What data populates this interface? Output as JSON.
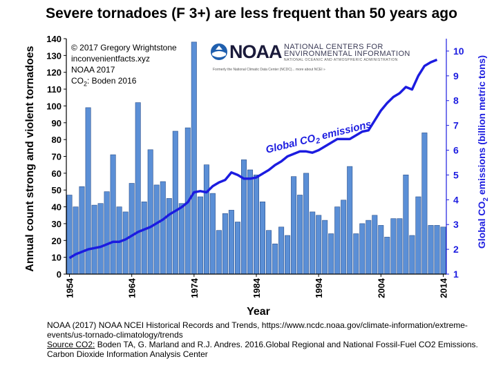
{
  "chart_data": {
    "type": "bar",
    "title": "Severe tornadoes (F 3+) are less frequent than 50 years ago",
    "xlabel": "Year",
    "ylabel": "Annual count strong and violent tornadoes",
    "y2label_prefix": "Global CO",
    "y2label_sub": "2",
    "y2label_suffix": " emissions  (billion metric tons)",
    "ylim": [
      0,
      140
    ],
    "y2lim": [
      1,
      10.5
    ],
    "yticks": [
      0,
      10,
      20,
      30,
      40,
      50,
      60,
      70,
      80,
      90,
      100,
      110,
      120,
      130,
      140
    ],
    "y2ticks": [
      1,
      2,
      3,
      4,
      5,
      6,
      7,
      8,
      9,
      10
    ],
    "xticks": [
      1954,
      1964,
      1974,
      1984,
      1994,
      2004,
      2014
    ],
    "years": [
      1954,
      1955,
      1956,
      1957,
      1958,
      1959,
      1960,
      1961,
      1962,
      1963,
      1964,
      1965,
      1966,
      1967,
      1968,
      1969,
      1970,
      1971,
      1972,
      1973,
      1974,
      1975,
      1976,
      1977,
      1978,
      1979,
      1980,
      1981,
      1982,
      1983,
      1984,
      1985,
      1986,
      1987,
      1988,
      1989,
      1990,
      1991,
      1992,
      1993,
      1994,
      1995,
      1996,
      1997,
      1998,
      1999,
      2000,
      2001,
      2002,
      2003,
      2004,
      2005,
      2006,
      2007,
      2008,
      2009,
      2010,
      2011,
      2012,
      2013,
      2014
    ],
    "bar_series": {
      "name": "Strong and violent tornadoes",
      "values": [
        47,
        40,
        52,
        99,
        41,
        42,
        49,
        71,
        40,
        37,
        54,
        102,
        43,
        74,
        53,
        55,
        45,
        85,
        42,
        87,
        138,
        46,
        65,
        48,
        26,
        36,
        38,
        31,
        68,
        62,
        59,
        43,
        26,
        18,
        28,
        23,
        58,
        47,
        60,
        37,
        35,
        32,
        24,
        40,
        44,
        64,
        24,
        30,
        32,
        35,
        29,
        22,
        33,
        33,
        59,
        23,
        46,
        84,
        29,
        29,
        28
      ]
    },
    "line_series": {
      "name": "Global CO2 emissions",
      "label_prefix": "Global CO",
      "label_sub": "2",
      "label_suffix": " emissions",
      "values": [
        1.65,
        1.8,
        1.9,
        2.0,
        2.05,
        2.1,
        2.2,
        2.3,
        2.3,
        2.4,
        2.55,
        2.7,
        2.8,
        2.9,
        3.05,
        3.2,
        3.4,
        3.55,
        3.7,
        3.9,
        4.3,
        4.35,
        4.3,
        4.55,
        4.7,
        4.8,
        5.1,
        5.0,
        4.85,
        4.85,
        4.9,
        5.05,
        5.2,
        5.4,
        5.55,
        5.75,
        5.85,
        5.95,
        5.95,
        5.9,
        6.0,
        6.15,
        6.3,
        6.45,
        6.45,
        6.45,
        6.6,
        6.75,
        6.8,
        7.2,
        7.6,
        7.9,
        8.15,
        8.3,
        8.55,
        8.45,
        9.0,
        9.4,
        9.55,
        9.65
      ]
    },
    "grid": false,
    "legend": "none"
  },
  "credits": {
    "copyright": "© 2017 Gregory Wrightstone",
    "site": "inconvenientfacts.xyz",
    "noaa": "NOAA 2017",
    "co2_prefix": "CO",
    "co2_sub": "2",
    "co2_suffix": ": Boden 2016"
  },
  "logo": {
    "name": "NOAA",
    "line1": "NATIONAL CENTERS FOR",
    "line2": "ENVIRONMENTAL INFORMATION",
    "line3": "NATIONAL OCEANIC AND ATMOSPHERIC ADMINISTRATION",
    "line4": "Formerly the National Climatic Data Center (NCDC)... more about NCEI »"
  },
  "footer": {
    "line1": "NOAA (2017) NOAA NCEI Historical Records and Trends, https://www.ncdc.noaa.gov/climate-information/extreme-events/us-tornado-climatology/trends",
    "source_label": "Source CO2:",
    "source_text": " Boden TA, G. Marland and R.J. Andres. 2016.Global Regional and National Fossil-Fuel CO2 Emissions. Carbon Dioxide Information Analysis Center"
  },
  "colors": {
    "bar_fill": "#5b8fd6",
    "bar_edge": "#2b4f8a",
    "line": "#1c1ce0",
    "axis_right": "#1c1ce0"
  }
}
